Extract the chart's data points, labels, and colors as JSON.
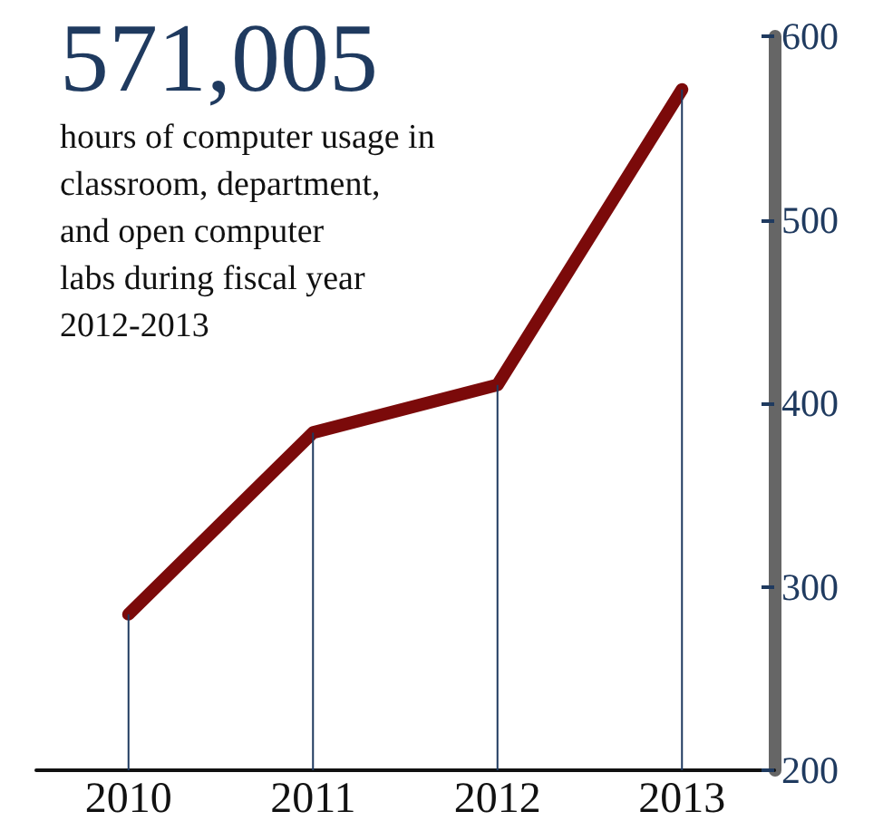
{
  "chart_data": {
    "type": "line",
    "title": "571,005",
    "subtitle": "hours of computer usage in\nclassroom, department,\nand open computer\nlabs during fiscal year\n2012-2013",
    "categories": [
      "2010",
      "2011",
      "2012",
      "2013"
    ],
    "series": [
      {
        "type": "bar",
        "color": "#1f3a5f",
        "values": [
          285,
          384,
          410,
          571
        ]
      },
      {
        "color": "#7b0a0a",
        "values": [
          285,
          384,
          410,
          571
        ]
      }
    ],
    "ylim": [
      200,
      600
    ],
    "yticks": [
      200,
      300,
      400,
      500,
      600
    ],
    "grid": false,
    "line_style": "solid"
  }
}
